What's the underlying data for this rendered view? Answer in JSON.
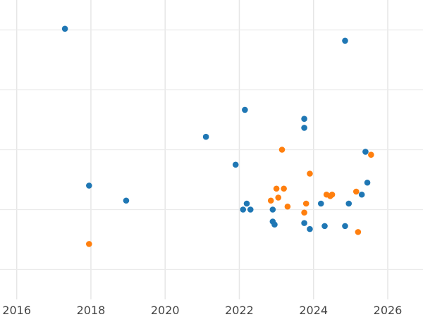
{
  "chart_data": {
    "type": "scatter",
    "title": "",
    "xlabel": "",
    "ylabel": "",
    "xlim": [
      2015.55,
      2026.95
    ],
    "ylim": [
      -1,
      9
    ],
    "x_ticks": [
      2016,
      2018,
      2020,
      2022,
      2024,
      2026
    ],
    "x_tick_labels": [
      "2016",
      "2018",
      "2020",
      "2022",
      "2024",
      "2026"
    ],
    "y_gridlines": [
      0,
      2,
      4,
      6,
      8
    ],
    "grid": true,
    "legend": null,
    "series": [
      {
        "color": "#1f77b4",
        "points": [
          [
            2017.3,
            8.04
          ],
          [
            2017.95,
            2.8
          ],
          [
            2018.95,
            2.3
          ],
          [
            2021.1,
            4.43
          ],
          [
            2021.9,
            3.5
          ],
          [
            2022.15,
            5.33
          ],
          [
            2022.1,
            2.0
          ],
          [
            2022.2,
            2.2
          ],
          [
            2022.3,
            2.0
          ],
          [
            2022.9,
            2.0
          ],
          [
            2022.9,
            1.6
          ],
          [
            2022.95,
            1.5
          ],
          [
            2023.75,
            5.03
          ],
          [
            2023.75,
            4.73
          ],
          [
            2023.75,
            1.55
          ],
          [
            2023.9,
            1.35
          ],
          [
            2024.2,
            2.2
          ],
          [
            2024.3,
            1.45
          ],
          [
            2024.85,
            7.64
          ],
          [
            2024.85,
            1.45
          ],
          [
            2024.95,
            2.2
          ],
          [
            2025.3,
            2.5
          ],
          [
            2025.4,
            3.93
          ],
          [
            2025.45,
            2.9
          ]
        ]
      },
      {
        "color": "#ff7f0e",
        "points": [
          [
            2017.95,
            0.85
          ],
          [
            2022.85,
            2.3
          ],
          [
            2023.0,
            2.7
          ],
          [
            2023.05,
            2.4
          ],
          [
            2023.15,
            4.0
          ],
          [
            2023.2,
            2.7
          ],
          [
            2023.3,
            2.1
          ],
          [
            2023.75,
            1.9
          ],
          [
            2023.8,
            2.2
          ],
          [
            2023.9,
            3.2
          ],
          [
            2024.35,
            2.5
          ],
          [
            2024.45,
            2.45
          ],
          [
            2024.5,
            2.5
          ],
          [
            2025.15,
            2.6
          ],
          [
            2025.2,
            1.25
          ],
          [
            2025.55,
            3.83
          ]
        ]
      }
    ]
  }
}
